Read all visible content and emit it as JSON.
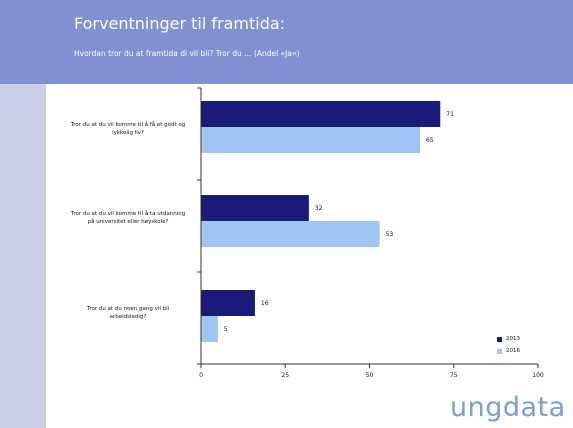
{
  "slide": {
    "title": "Forventninger til framtida:",
    "subtitle": "Hvordan tror du at framtida di vil bli? Tror du … (Andel «Ja»)",
    "logo": "ungdata"
  },
  "colors": {
    "header": "#8190d1",
    "series_2013": "#1a1a7a",
    "series_2016": "#9fc6f2"
  },
  "chart_data": {
    "type": "bar",
    "orientation": "horizontal",
    "categories": [
      "Tror du at du vil komme til å få et godt og lykkelig liv?",
      "Tror du at du vil komme til å ta utdanning på universitet eller høyskole?",
      "Tror du at du noen gang vil bli arbeidsledig?"
    ],
    "series": [
      {
        "name": "2013",
        "values": [
          71,
          32,
          16
        ]
      },
      {
        "name": "2016",
        "values": [
          65,
          53,
          5
        ]
      }
    ],
    "xlim": [
      0,
      100
    ],
    "xticks": [
      0,
      25,
      50,
      75,
      100
    ],
    "legend": "bottom-right",
    "grid": false
  }
}
